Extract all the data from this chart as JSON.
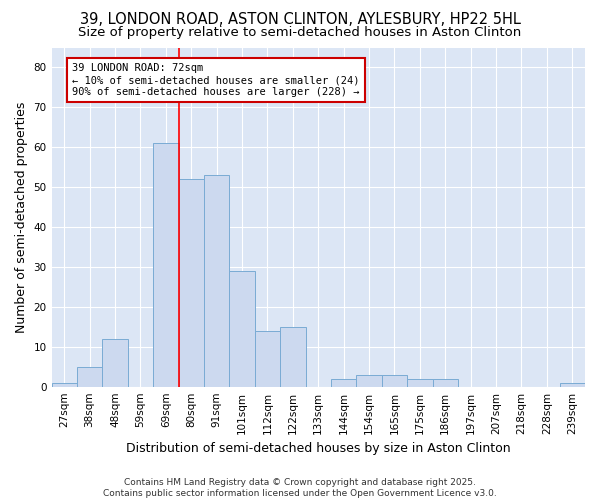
{
  "title": "39, LONDON ROAD, ASTON CLINTON, AYLESBURY, HP22 5HL",
  "subtitle": "Size of property relative to semi-detached houses in Aston Clinton",
  "xlabel": "Distribution of semi-detached houses by size in Aston Clinton",
  "ylabel": "Number of semi-detached properties",
  "footer": "Contains HM Land Registry data © Crown copyright and database right 2025.\nContains public sector information licensed under the Open Government Licence v3.0.",
  "categories": [
    "27sqm",
    "38sqm",
    "48sqm",
    "59sqm",
    "69sqm",
    "80sqm",
    "91sqm",
    "101sqm",
    "112sqm",
    "122sqm",
    "133sqm",
    "144sqm",
    "154sqm",
    "165sqm",
    "175sqm",
    "186sqm",
    "197sqm",
    "207sqm",
    "218sqm",
    "228sqm",
    "239sqm"
  ],
  "values": [
    1,
    5,
    12,
    0,
    61,
    52,
    53,
    29,
    14,
    15,
    0,
    2,
    3,
    3,
    2,
    2,
    0,
    0,
    0,
    0,
    1
  ],
  "bar_color": "#ccd9ef",
  "bar_edge_color": "#7aabd4",
  "red_line_index": 4.5,
  "annotation_text": "39 LONDON ROAD: 72sqm\n← 10% of semi-detached houses are smaller (24)\n90% of semi-detached houses are larger (228) →",
  "annotation_box_color": "#ffffff",
  "annotation_box_edge": "#cc0000",
  "ylim": [
    0,
    85
  ],
  "yticks": [
    0,
    10,
    20,
    30,
    40,
    50,
    60,
    70,
    80
  ],
  "plot_bg_color": "#dce6f5",
  "figure_bg_color": "#ffffff",
  "grid_color": "#ffffff",
  "title_fontsize": 10.5,
  "subtitle_fontsize": 9.5,
  "axis_label_fontsize": 9,
  "tick_fontsize": 7.5,
  "annotation_fontsize": 7.5,
  "footer_fontsize": 6.5
}
